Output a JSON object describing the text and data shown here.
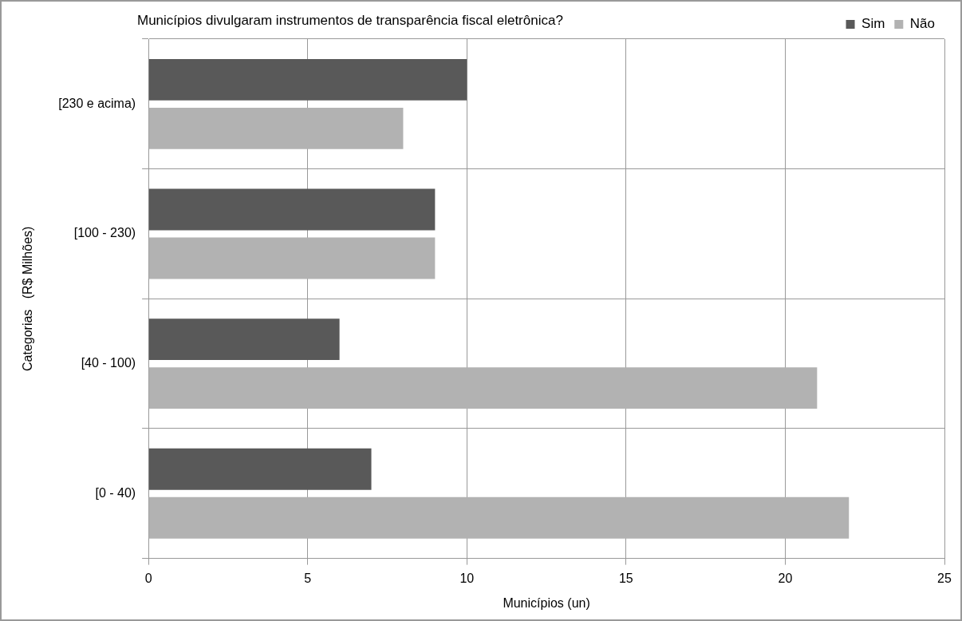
{
  "chart_data": {
    "type": "bar",
    "orientation": "horizontal",
    "title": "Municípios divulgaram instrumentos de transparência fiscal eletrônica?",
    "xlabel": "Municípios (un)",
    "ylabel": "Categorias   (R$ Milhões)",
    "categories": [
      "[230 e acima)",
      "[100 - 230)",
      "[40 - 100)",
      "[0 - 40)"
    ],
    "series": [
      {
        "name": "Sim",
        "color": "#595959",
        "values": [
          10,
          9,
          6,
          7
        ]
      },
      {
        "name": "Não",
        "color": "#b2b2b2",
        "values": [
          8,
          9,
          21,
          22
        ]
      }
    ],
    "xlim": [
      0,
      25
    ],
    "xticks": [
      0,
      5,
      10,
      15,
      20,
      25
    ],
    "grid": true,
    "legend": "top right"
  }
}
